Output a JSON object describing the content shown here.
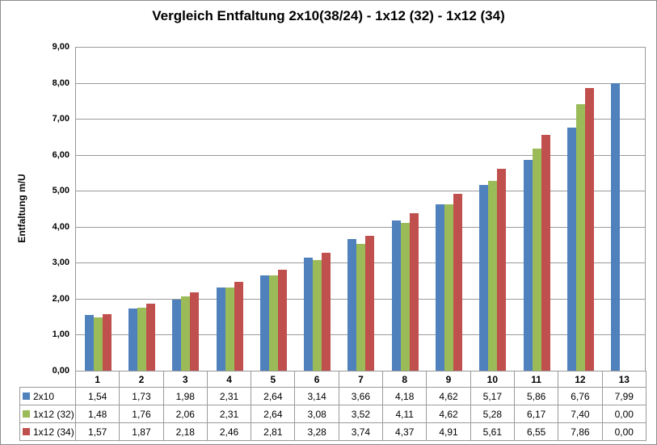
{
  "title": "Vergleich Entfaltung 2x10(38/24) - 1x12 (32) - 1x12 (34)",
  "y_axis": {
    "label": "Entfaltung m/U",
    "tick_labels": [
      "0,00",
      "1,00",
      "2,00",
      "3,00",
      "4,00",
      "5,00",
      "6,00",
      "7,00",
      "8,00",
      "9,00"
    ],
    "min": 0,
    "max": 9,
    "step": 1
  },
  "chart_data": {
    "type": "bar",
    "title": "Vergleich Entfaltung 2x10(38/24) - 1x12 (32) - 1x12 (34)",
    "xlabel": "",
    "ylabel": "Entfaltung m/U",
    "ylim": [
      0,
      9
    ],
    "grid": true,
    "legend_position": "data-table-left",
    "categories": [
      "1",
      "2",
      "3",
      "4",
      "5",
      "6",
      "7",
      "8",
      "9",
      "10",
      "11",
      "12",
      "13"
    ],
    "series": [
      {
        "name": "2x10",
        "color": "#4f81bd",
        "values": [
          1.54,
          1.73,
          1.98,
          2.31,
          2.64,
          3.14,
          3.66,
          4.18,
          4.62,
          5.17,
          5.86,
          6.76,
          7.99
        ]
      },
      {
        "name": "1x12 (32)",
        "color": "#9bbb59",
        "values": [
          1.48,
          1.76,
          2.06,
          2.31,
          2.64,
          3.08,
          3.52,
          4.11,
          4.62,
          5.28,
          6.17,
          7.4,
          0.0
        ]
      },
      {
        "name": "1x12 (34)",
        "color": "#c0504d",
        "values": [
          1.57,
          1.87,
          2.18,
          2.46,
          2.81,
          3.28,
          3.74,
          4.37,
          4.91,
          5.61,
          6.55,
          7.86,
          0.0
        ]
      }
    ]
  },
  "data_table": {
    "rows": [
      {
        "label": "2x10",
        "swatch_color": "#4f81bd",
        "cells": [
          "1,54",
          "1,73",
          "1,98",
          "2,31",
          "2,64",
          "3,14",
          "3,66",
          "4,18",
          "4,62",
          "5,17",
          "5,86",
          "6,76",
          "7,99"
        ]
      },
      {
        "label": "1x12 (32)",
        "swatch_color": "#9bbb59",
        "cells": [
          "1,48",
          "1,76",
          "2,06",
          "2,31",
          "2,64",
          "3,08",
          "3,52",
          "4,11",
          "4,62",
          "5,28",
          "6,17",
          "7,40",
          "0,00"
        ]
      },
      {
        "label": "1x12 (34)",
        "swatch_color": "#c0504d",
        "cells": [
          "1,57",
          "1,87",
          "2,18",
          "2,46",
          "2,81",
          "3,28",
          "3,74",
          "4,37",
          "4,91",
          "5,61",
          "6,55",
          "7,86",
          "0,00"
        ]
      }
    ]
  },
  "colors": {
    "gridline": "#9a9a9a",
    "table_border": "#9a9a9a",
    "frame_border": "#8e8e8e",
    "background": "#ffffff"
  }
}
